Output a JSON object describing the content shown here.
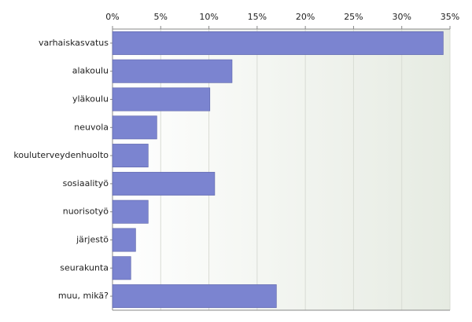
{
  "chart_data": {
    "type": "bar",
    "orientation": "horizontal",
    "categories": [
      "varhaiskasvatus",
      "alakoulu",
      "yläkoulu",
      "neuvola",
      "kouluterveydenhuolto",
      "sosiaalityö",
      "nuorisotyö",
      "järjestö",
      "seurakunta",
      "muu, mikä?"
    ],
    "values": [
      34.3,
      12.4,
      10.1,
      4.6,
      3.7,
      10.6,
      3.7,
      2.4,
      1.9,
      17.0
    ],
    "color": "#7b84d0",
    "xlim": [
      0,
      35
    ],
    "xticks": [
      {
        "value": 0,
        "label": "0%"
      },
      {
        "value": 5,
        "label": "5%"
      },
      {
        "value": 10,
        "label": "10%"
      },
      {
        "value": 15,
        "label": "15%"
      },
      {
        "value": 20,
        "label": "20%"
      },
      {
        "value": 25,
        "label": "25%"
      },
      {
        "value": 30,
        "label": "30%"
      },
      {
        "value": 35,
        "label": "35%"
      }
    ],
    "grid": true
  }
}
